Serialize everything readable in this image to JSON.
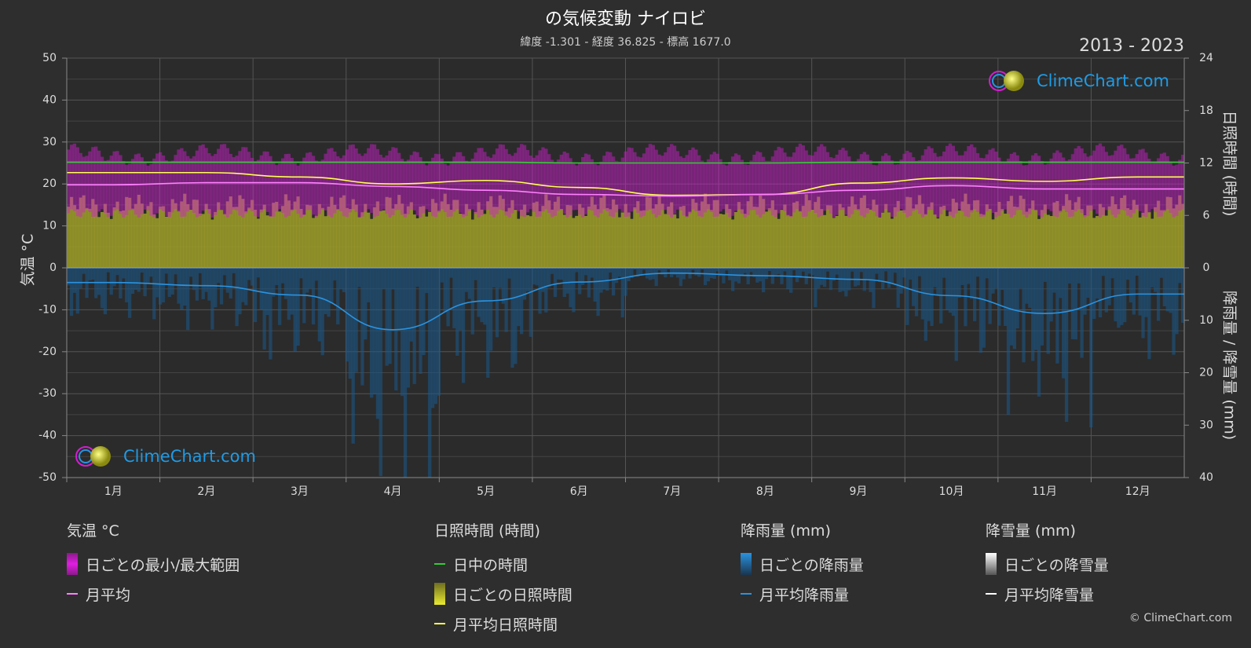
{
  "title": "の気候変動 ナイロビ",
  "subtitle": "緯度 -1.301 - 経度 36.825 - 標高 1677.0",
  "years": "2013 - 2023",
  "watermark": "ClimeChart.com",
  "copyright": "© ClimeChart.com",
  "colors": {
    "background": "#2e2e2e",
    "temp_range": "#d21ed2",
    "temp_avg": "#ff80ff",
    "daylight": "#33cc33",
    "sunshine_fill": "#9e9e28",
    "sunshine_avg": "#ffff55",
    "rain_fill": "#1a5a8c",
    "rain_avg": "#2a93e0",
    "snow_avg": "#ffffff"
  },
  "legend": {
    "temperature": {
      "title": "気温 °C",
      "range": "日ごとの最小/最大範囲",
      "avg": "月平均"
    },
    "sunshine": {
      "title": "日照時間 (時間)",
      "daylight": "日中の時間",
      "daily": "日ごとの日照時間",
      "avg": "月平均日照時間"
    },
    "rain": {
      "title": "降雨量 (mm)",
      "daily": "日ごとの降雨量",
      "avg": "月平均降雨量"
    },
    "snow": {
      "title": "降雪量 (mm)",
      "daily": "日ごとの降雪量",
      "avg": "月平均降雪量"
    }
  },
  "chart_data": {
    "type": "line",
    "categories": [
      "1月",
      "2月",
      "3月",
      "4月",
      "5月",
      "6月",
      "7月",
      "8月",
      "9月",
      "10月",
      "11月",
      "12月"
    ],
    "left_axis": {
      "label": "気温 °C",
      "range": [
        -50,
        50
      ],
      "ticks": [
        50,
        40,
        30,
        20,
        10,
        0,
        -10,
        -20,
        -30,
        -40,
        -50
      ]
    },
    "right_axis_top": {
      "label": "日照時間 (時間)",
      "range": [
        0,
        24
      ],
      "ticks": [
        24,
        18,
        12,
        6,
        0
      ]
    },
    "right_axis_bottom": {
      "label": "降雨量 / 降雪量 (mm)",
      "range": [
        0,
        40
      ],
      "ticks": [
        10,
        20,
        30,
        40
      ]
    },
    "series": [
      {
        "name": "日中の時間",
        "axis": "sunshine",
        "values": [
          12.1,
          12.1,
          12.1,
          12.1,
          12.1,
          12.0,
          12.0,
          12.0,
          12.1,
          12.1,
          12.1,
          12.1
        ]
      },
      {
        "name": "月平均日照時間",
        "axis": "sunshine",
        "values": [
          10.9,
          10.9,
          10.4,
          9.6,
          10.0,
          9.2,
          8.3,
          8.4,
          9.7,
          10.3,
          9.9,
          10.4
        ]
      },
      {
        "name": "月平均",
        "axis": "temperature",
        "values": [
          19.8,
          20.3,
          20.3,
          19.4,
          18.5,
          17.5,
          17.1,
          17.5,
          18.5,
          19.6,
          18.8,
          18.8
        ]
      },
      {
        "name": "月平均降雨量",
        "axis": "rain",
        "values": [
          2.8,
          3.4,
          5.2,
          11.8,
          6.3,
          2.7,
          1.0,
          1.5,
          2.2,
          5.3,
          8.7,
          5.0
        ]
      },
      {
        "name": "月平均降雪量",
        "axis": "snow",
        "values": [
          0,
          0,
          0,
          0,
          0,
          0,
          0,
          0,
          0,
          0,
          0,
          0
        ]
      }
    ],
    "daily_range_approx": {
      "max_c": 27,
      "min_c": 13
    },
    "daily_sunshine_approx_hours": 7.0,
    "grid": true
  }
}
